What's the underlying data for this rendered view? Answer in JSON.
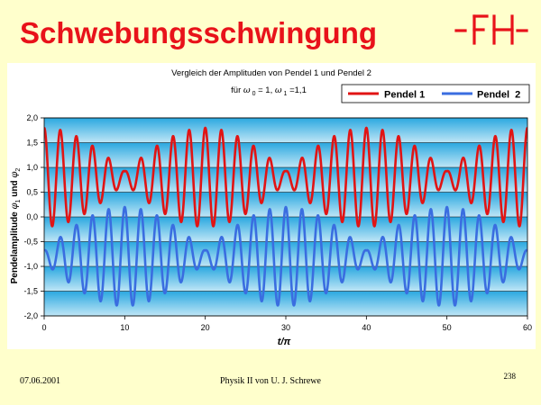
{
  "slide": {
    "title": "Schwebungsschwingung",
    "date": "07.06.2001",
    "footer": "Physik II von U. J. Schrewe",
    "page_number": "238"
  },
  "colors": {
    "title": "#e8121a",
    "logo": "#e8121a",
    "plot_gradient_top": "#2aa8e0",
    "plot_gradient_mid": "#bfe6f6",
    "pendel1": "#e11414",
    "pendel2": "#3a6de0"
  },
  "chart_data": {
    "type": "line",
    "title_line1": "Vergleich der Amplituden von Pendel 1 und Pendel 2",
    "title_line2_parts": [
      "für ",
      "ω",
      " 0",
      " = 1, ",
      "ω",
      " 1",
      " =1,1"
    ],
    "xlabel": "t/π",
    "ylabel_parts": [
      "Pendelamplitude ",
      "φ",
      "1",
      " und ",
      "φ",
      "2"
    ],
    "xlim": [
      0,
      60
    ],
    "ylim": [
      -2,
      2
    ],
    "x_ticks": [
      0,
      10,
      20,
      30,
      40,
      50,
      60
    ],
    "y_ticks": [
      "2,0",
      "1,5",
      "1,0",
      "0,5",
      "0,0",
      "-0,5",
      "-1,0",
      "-1,5",
      "-2,0"
    ],
    "y_tick_values": [
      2,
      1.5,
      1,
      0.5,
      0,
      -0.5,
      -1,
      -1.5,
      -2
    ],
    "grid": "horizontal",
    "legend_position": "top-right",
    "series": [
      {
        "name": "Pendel 1",
        "color": "#e11414",
        "offset": 0.8,
        "carrier_omega_pi": 3.1416,
        "envelope_omega_pi": 0.1571,
        "amplitude": 1.0,
        "min_amplitude": 0.12,
        "envelope_phase": 0
      },
      {
        "name": "Pendel  2",
        "color": "#3a6de0",
        "offset": -0.8,
        "carrier_omega_pi": 3.1416,
        "envelope_omega_pi": 0.1571,
        "amplitude": 1.0,
        "min_amplitude": 0.12,
        "envelope_phase": 1.5708
      }
    ]
  }
}
